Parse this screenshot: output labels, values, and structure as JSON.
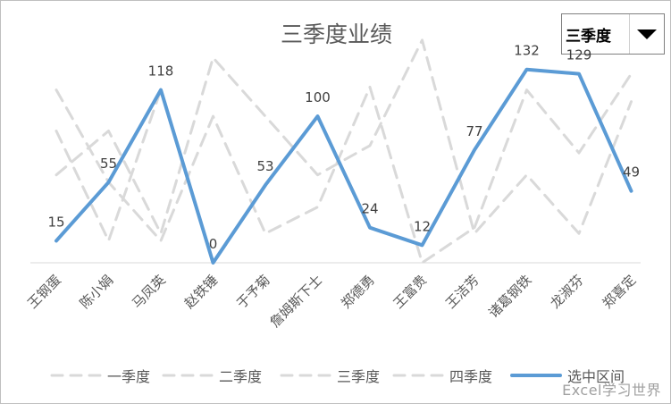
{
  "chart_data": {
    "type": "line",
    "title": "三季度业绩",
    "categories": [
      "王钢蛋",
      "陈小娟",
      "马凤英",
      "赵铁锤",
      "于予菊",
      "詹姆斯下士",
      "郑德勇",
      "王富贵",
      "王洁芳",
      "诸葛钢铁",
      "龙淑芬",
      "郑喜定"
    ],
    "series": [
      {
        "name": "一季度",
        "values": [
          90,
          15,
          118,
          0,
          53,
          100,
          24,
          12,
          77,
          132,
          129,
          49
        ],
        "style": "dashed",
        "color": "#d9d9d9"
      },
      {
        "name": "二季度",
        "values": [
          118,
          55,
          15,
          100,
          20,
          38,
          120,
          0,
          24,
          118,
          75,
          129
        ],
        "style": "dashed",
        "color": "#d9d9d9"
      },
      {
        "name": "三季度",
        "values": [
          15,
          55,
          118,
          0,
          53,
          100,
          24,
          12,
          77,
          132,
          129,
          49
        ],
        "style": "dashed",
        "color": "#d9d9d9"
      },
      {
        "name": "四季度",
        "values": [
          60,
          90,
          20,
          140,
          100,
          60,
          80,
          152,
          20,
          60,
          20,
          110
        ],
        "style": "dashed",
        "color": "#d9d9d9"
      },
      {
        "name": "选中区间",
        "values": [
          15,
          55,
          118,
          0,
          53,
          100,
          24,
          12,
          77,
          132,
          129,
          49
        ],
        "style": "solid",
        "color": "#5b9bd5",
        "data_labels": true
      }
    ],
    "ylim": [
      0,
      155
    ],
    "grid": false,
    "legend": "bottom"
  },
  "selector": {
    "value": "三季度"
  },
  "watermark": "Excel学习世界"
}
